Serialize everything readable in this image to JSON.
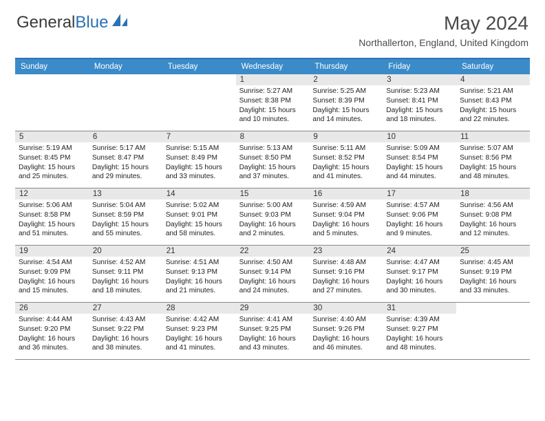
{
  "logo": {
    "part1": "General",
    "part2": "Blue"
  },
  "title": "May 2024",
  "location": "Northallerton, England, United Kingdom",
  "colors": {
    "header_bg": "#3b8bc9",
    "header_border": "#2a72b5",
    "daynum_bg": "#e8e8e8",
    "row_border": "#888888",
    "text": "#222222",
    "title": "#4a4a4a"
  },
  "dayNames": [
    "Sunday",
    "Monday",
    "Tuesday",
    "Wednesday",
    "Thursday",
    "Friday",
    "Saturday"
  ],
  "weeks": [
    [
      null,
      null,
      null,
      {
        "n": "1",
        "sr": "5:27 AM",
        "ss": "8:38 PM",
        "dl": "15 hours and 10 minutes."
      },
      {
        "n": "2",
        "sr": "5:25 AM",
        "ss": "8:39 PM",
        "dl": "15 hours and 14 minutes."
      },
      {
        "n": "3",
        "sr": "5:23 AM",
        "ss": "8:41 PM",
        "dl": "15 hours and 18 minutes."
      },
      {
        "n": "4",
        "sr": "5:21 AM",
        "ss": "8:43 PM",
        "dl": "15 hours and 22 minutes."
      }
    ],
    [
      {
        "n": "5",
        "sr": "5:19 AM",
        "ss": "8:45 PM",
        "dl": "15 hours and 25 minutes."
      },
      {
        "n": "6",
        "sr": "5:17 AM",
        "ss": "8:47 PM",
        "dl": "15 hours and 29 minutes."
      },
      {
        "n": "7",
        "sr": "5:15 AM",
        "ss": "8:49 PM",
        "dl": "15 hours and 33 minutes."
      },
      {
        "n": "8",
        "sr": "5:13 AM",
        "ss": "8:50 PM",
        "dl": "15 hours and 37 minutes."
      },
      {
        "n": "9",
        "sr": "5:11 AM",
        "ss": "8:52 PM",
        "dl": "15 hours and 41 minutes."
      },
      {
        "n": "10",
        "sr": "5:09 AM",
        "ss": "8:54 PM",
        "dl": "15 hours and 44 minutes."
      },
      {
        "n": "11",
        "sr": "5:07 AM",
        "ss": "8:56 PM",
        "dl": "15 hours and 48 minutes."
      }
    ],
    [
      {
        "n": "12",
        "sr": "5:06 AM",
        "ss": "8:58 PM",
        "dl": "15 hours and 51 minutes."
      },
      {
        "n": "13",
        "sr": "5:04 AM",
        "ss": "8:59 PM",
        "dl": "15 hours and 55 minutes."
      },
      {
        "n": "14",
        "sr": "5:02 AM",
        "ss": "9:01 PM",
        "dl": "15 hours and 58 minutes."
      },
      {
        "n": "15",
        "sr": "5:00 AM",
        "ss": "9:03 PM",
        "dl": "16 hours and 2 minutes."
      },
      {
        "n": "16",
        "sr": "4:59 AM",
        "ss": "9:04 PM",
        "dl": "16 hours and 5 minutes."
      },
      {
        "n": "17",
        "sr": "4:57 AM",
        "ss": "9:06 PM",
        "dl": "16 hours and 9 minutes."
      },
      {
        "n": "18",
        "sr": "4:56 AM",
        "ss": "9:08 PM",
        "dl": "16 hours and 12 minutes."
      }
    ],
    [
      {
        "n": "19",
        "sr": "4:54 AM",
        "ss": "9:09 PM",
        "dl": "16 hours and 15 minutes."
      },
      {
        "n": "20",
        "sr": "4:52 AM",
        "ss": "9:11 PM",
        "dl": "16 hours and 18 minutes."
      },
      {
        "n": "21",
        "sr": "4:51 AM",
        "ss": "9:13 PM",
        "dl": "16 hours and 21 minutes."
      },
      {
        "n": "22",
        "sr": "4:50 AM",
        "ss": "9:14 PM",
        "dl": "16 hours and 24 minutes."
      },
      {
        "n": "23",
        "sr": "4:48 AM",
        "ss": "9:16 PM",
        "dl": "16 hours and 27 minutes."
      },
      {
        "n": "24",
        "sr": "4:47 AM",
        "ss": "9:17 PM",
        "dl": "16 hours and 30 minutes."
      },
      {
        "n": "25",
        "sr": "4:45 AM",
        "ss": "9:19 PM",
        "dl": "16 hours and 33 minutes."
      }
    ],
    [
      {
        "n": "26",
        "sr": "4:44 AM",
        "ss": "9:20 PM",
        "dl": "16 hours and 36 minutes."
      },
      {
        "n": "27",
        "sr": "4:43 AM",
        "ss": "9:22 PM",
        "dl": "16 hours and 38 minutes."
      },
      {
        "n": "28",
        "sr": "4:42 AM",
        "ss": "9:23 PM",
        "dl": "16 hours and 41 minutes."
      },
      {
        "n": "29",
        "sr": "4:41 AM",
        "ss": "9:25 PM",
        "dl": "16 hours and 43 minutes."
      },
      {
        "n": "30",
        "sr": "4:40 AM",
        "ss": "9:26 PM",
        "dl": "16 hours and 46 minutes."
      },
      {
        "n": "31",
        "sr": "4:39 AM",
        "ss": "9:27 PM",
        "dl": "16 hours and 48 minutes."
      },
      null
    ]
  ],
  "labels": {
    "sunrise": "Sunrise:",
    "sunset": "Sunset:",
    "daylight": "Daylight:"
  }
}
